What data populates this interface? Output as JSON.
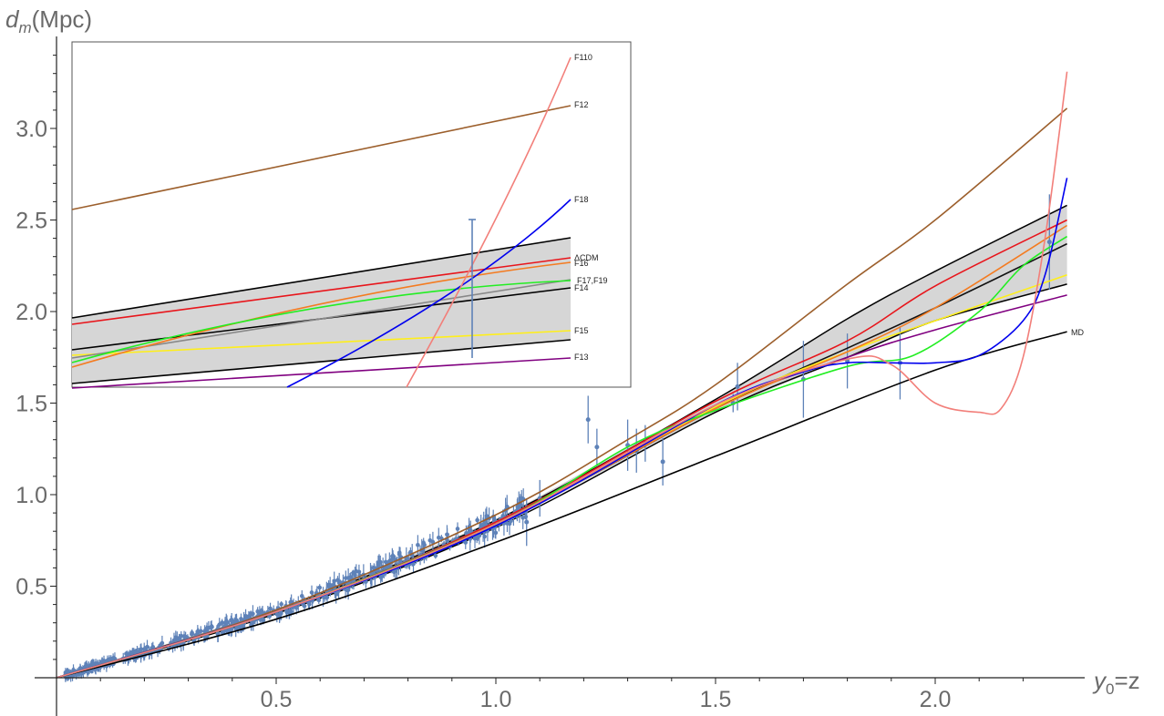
{
  "chart_data": {
    "type": "line",
    "xlabel": "y",
    "xlabel_sub": "0",
    "xlabel_rest": "=z",
    "ylabel": "d",
    "ylabel_sub": "m",
    "ylabel_rest": "(Mpc)",
    "xlim": [
      0,
      2.3
    ],
    "ylim": [
      0,
      3.5
    ],
    "x_ticks": [
      "0.5",
      "1.0",
      "1.5",
      "2.0"
    ],
    "x_tick_values": [
      0.5,
      1.0,
      1.5,
      2.0
    ],
    "y_ticks": [
      "0.5",
      "1.0",
      "1.5",
      "2.0",
      "2.5",
      "3.0"
    ],
    "y_tick_values": [
      0.5,
      1.0,
      1.5,
      2.0,
      2.5,
      3.0
    ],
    "colors": {
      "data": "#5e82b8",
      "band": "#d6d6d6",
      "axis": "#222222"
    },
    "band": {
      "x": [
        0,
        0.5,
        1.0,
        1.5,
        1.8,
        2.0,
        2.3
      ],
      "upper": [
        0,
        0.37,
        0.86,
        1.52,
        1.96,
        2.22,
        2.58
      ],
      "lower": [
        0,
        0.35,
        0.82,
        1.45,
        1.75,
        1.95,
        2.15
      ]
    },
    "series": [
      {
        "name": "MD",
        "color": "#000000",
        "x": [
          0,
          0.5,
          1.0,
          1.5,
          2.0,
          2.3
        ],
        "y": [
          0,
          0.32,
          0.74,
          1.21,
          1.68,
          1.89
        ]
      },
      {
        "name": "ΛCDM",
        "color": "#e8151b",
        "x": [
          0,
          0.5,
          1.0,
          1.5,
          1.8,
          2.0,
          2.3
        ],
        "y": [
          0,
          0.36,
          0.85,
          1.51,
          1.84,
          2.14,
          2.5
        ]
      },
      {
        "name": "F12",
        "color": "#9c5f2c",
        "x": [
          0,
          0.5,
          1.0,
          1.3,
          1.5,
          1.8,
          2.0,
          2.3
        ],
        "y": [
          0,
          0.37,
          0.89,
          1.3,
          1.6,
          2.15,
          2.5,
          3.11
        ]
      },
      {
        "name": "F13",
        "color": "#800080",
        "x": [
          0,
          0.5,
          1.0,
          1.5,
          1.8,
          2.0,
          2.3
        ],
        "y": [
          0,
          0.36,
          0.84,
          1.48,
          1.75,
          1.9,
          2.09
        ]
      },
      {
        "name": "F14",
        "color": "#111111",
        "x": [
          0,
          0.5,
          1.0,
          1.5,
          1.8,
          2.0,
          2.3
        ],
        "y": [
          0,
          0.36,
          0.84,
          1.47,
          1.8,
          2.02,
          2.37
        ]
      },
      {
        "name": "F15",
        "color": "#ffef1a",
        "x": [
          0,
          0.5,
          1.0,
          1.5,
          1.8,
          2.0,
          2.3
        ],
        "y": [
          0,
          0.36,
          0.84,
          1.48,
          1.78,
          1.95,
          2.2
        ]
      },
      {
        "name": "F16",
        "color": "#f47b20",
        "x": [
          0,
          0.5,
          1.0,
          1.5,
          1.8,
          2.0,
          2.3
        ],
        "y": [
          0,
          0.36,
          0.84,
          1.47,
          1.78,
          2.02,
          2.47
        ]
      },
      {
        "name": "F17,F19",
        "color": "#22ee22",
        "x": [
          0,
          0.5,
          1.0,
          1.3,
          1.5,
          1.8,
          1.95,
          2.1,
          2.2,
          2.3
        ],
        "y": [
          0,
          0.36,
          0.84,
          1.26,
          1.46,
          1.7,
          1.76,
          2.0,
          2.25,
          2.41
        ]
      },
      {
        "name": "F18",
        "color": "#0000ee",
        "x": [
          0,
          0.5,
          1.0,
          1.5,
          1.7,
          1.8,
          1.9,
          2.0,
          2.1,
          2.2,
          2.25,
          2.3
        ],
        "y": [
          0,
          0.36,
          0.83,
          1.49,
          1.67,
          1.72,
          1.72,
          1.72,
          1.76,
          1.95,
          2.2,
          2.73
        ]
      },
      {
        "name": "F110",
        "color": "#f27f7a",
        "x": [
          0,
          0.5,
          1.0,
          1.5,
          1.8,
          1.9,
          2.0,
          2.1,
          2.15,
          2.2,
          2.25,
          2.3
        ],
        "y": [
          0,
          0.36,
          0.84,
          1.49,
          1.74,
          1.71,
          1.5,
          1.45,
          1.47,
          1.75,
          2.4,
          3.31
        ]
      }
    ],
    "inset": {
      "labels": [
        "F110",
        "F12",
        "F18",
        "ΛCDM",
        "F16",
        "F17,F19",
        "F14",
        "F15",
        "F13"
      ]
    },
    "label_md": "MD"
  }
}
